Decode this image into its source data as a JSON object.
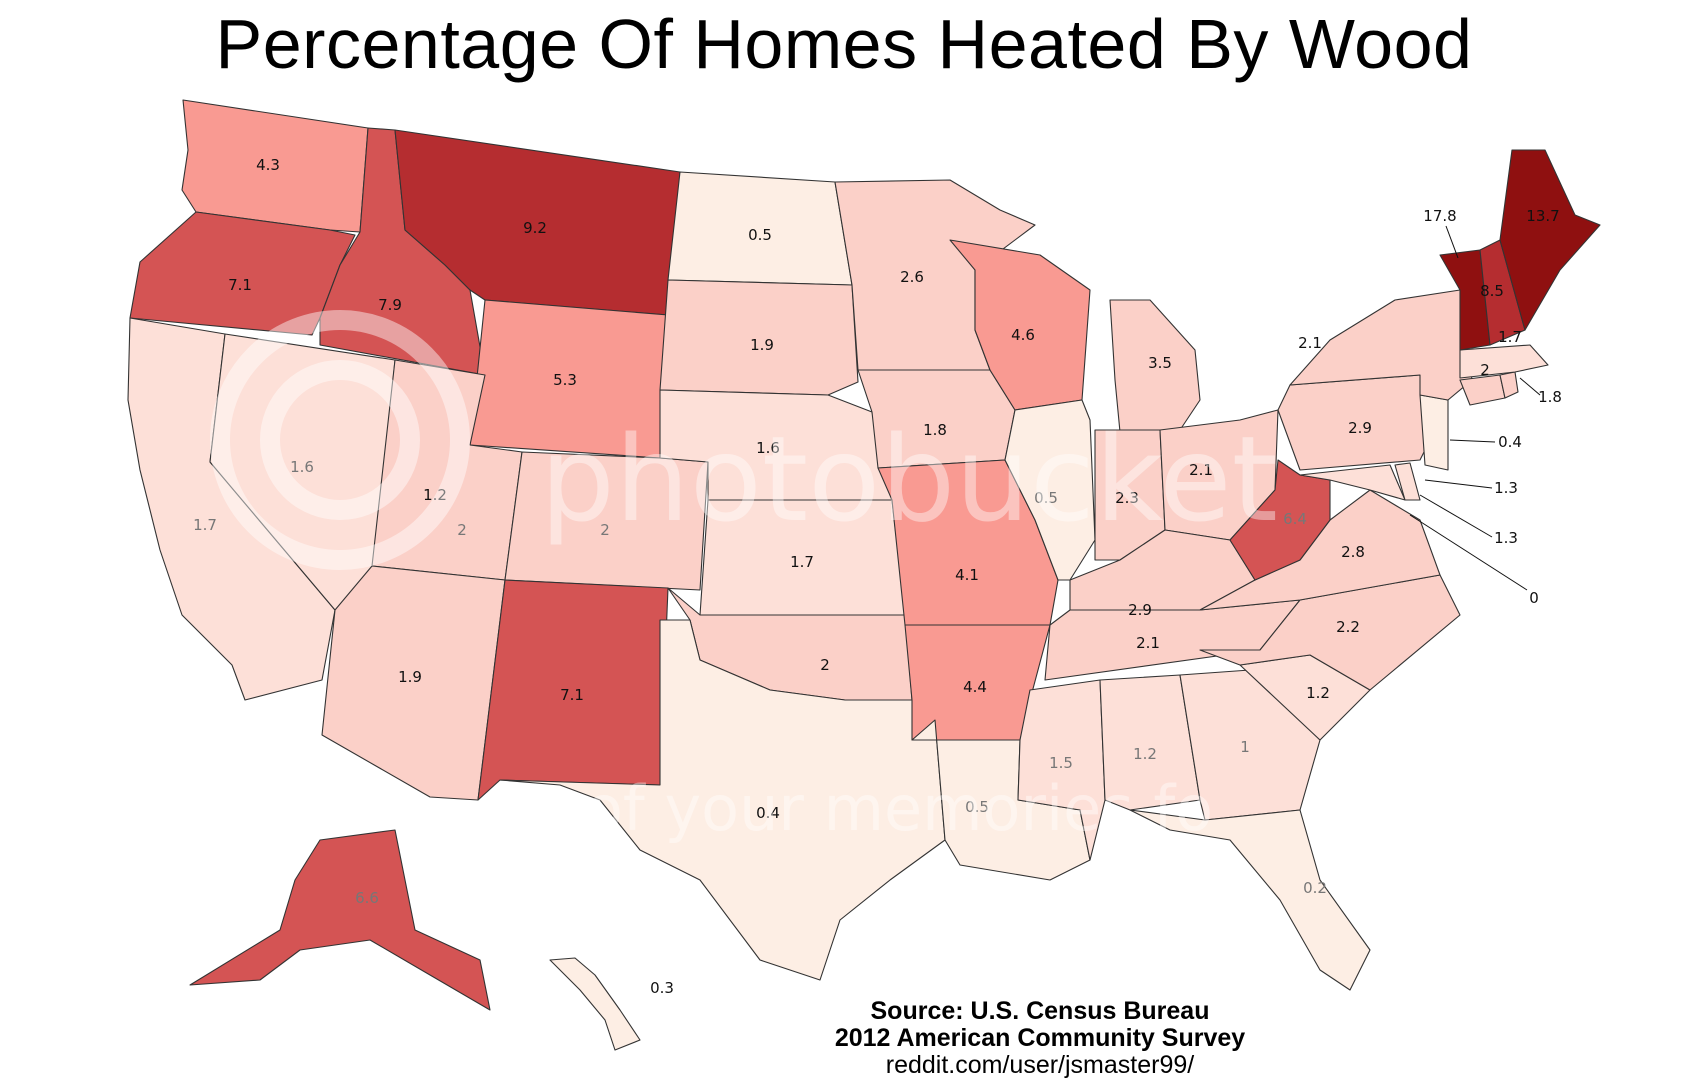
{
  "title": "Percentage Of Homes Heated By Wood",
  "source": {
    "line1": "Source: U.S. Census Bureau",
    "line2": "2012 American Community Survey",
    "line3": "reddit.com/user/jsmaster99/"
  },
  "watermark": {
    "brand": "photobucket",
    "tagline": "of your memories fo"
  },
  "colors": {
    "scale": [
      "#fdeee4",
      "#fde0d8",
      "#fbd0c8",
      "#f99a92",
      "#d45454",
      "#b52d30",
      "#8f1010"
    ]
  },
  "states": [
    {
      "code": "ME",
      "value": "13.7"
    },
    {
      "code": "VT",
      "value": "17.8"
    },
    {
      "code": "MT",
      "value": "9.2"
    },
    {
      "code": "NH",
      "value": "8.5"
    },
    {
      "code": "ID",
      "value": "7.9"
    },
    {
      "code": "OR",
      "value": "7.1"
    },
    {
      "code": "NM",
      "value": "7.1"
    },
    {
      "code": "AK",
      "value": "6.6"
    },
    {
      "code": "WV",
      "value": "6.4"
    },
    {
      "code": "WY",
      "value": "5.3"
    },
    {
      "code": "WI",
      "value": "4.6"
    },
    {
      "code": "AR",
      "value": "4.4"
    },
    {
      "code": "WA",
      "value": "4.3"
    },
    {
      "code": "MO",
      "value": "4.1"
    },
    {
      "code": "MI",
      "value": "3.5"
    },
    {
      "code": "PA",
      "value": "2.9"
    },
    {
      "code": "KY",
      "value": "2.9"
    },
    {
      "code": "VA",
      "value": "2.8"
    },
    {
      "code": "MN",
      "value": "2.6"
    },
    {
      "code": "IN",
      "value": "2.3"
    },
    {
      "code": "NC",
      "value": "2.2"
    },
    {
      "code": "NY",
      "value": "2.1"
    },
    {
      "code": "OH",
      "value": "2.1"
    },
    {
      "code": "TN",
      "value": "2.1"
    },
    {
      "code": "UT",
      "value": "2"
    },
    {
      "code": "CO",
      "value": "2"
    },
    {
      "code": "OK",
      "value": "2"
    },
    {
      "code": "CT",
      "value": "2"
    },
    {
      "code": "SD",
      "value": "1.9"
    },
    {
      "code": "AZ",
      "value": "1.9"
    },
    {
      "code": "IA",
      "value": "1.8"
    },
    {
      "code": "RI",
      "value": "1.8"
    },
    {
      "code": "CA",
      "value": "1.7"
    },
    {
      "code": "KS",
      "value": "1.7"
    },
    {
      "code": "MA",
      "value": "1.7"
    },
    {
      "code": "NE",
      "value": "1.6"
    },
    {
      "code": "NV",
      "value": "1.6"
    },
    {
      "code": "MS",
      "value": "1.5"
    },
    {
      "code": "DE",
      "value": "1.3"
    },
    {
      "code": "MD",
      "value": "1.3"
    },
    {
      "code": "NV2",
      "value": "1.2"
    },
    {
      "code": "AL",
      "value": "1.2"
    },
    {
      "code": "SC",
      "value": "1.2"
    },
    {
      "code": "GA",
      "value": "1"
    },
    {
      "code": "ND",
      "value": "0.5"
    },
    {
      "code": "IL",
      "value": "0.5"
    },
    {
      "code": "LA",
      "value": "0.5"
    },
    {
      "code": "TX",
      "value": "0.4"
    },
    {
      "code": "NJ",
      "value": "0.4"
    },
    {
      "code": "HI",
      "value": "0.3"
    },
    {
      "code": "FL",
      "value": "0.2"
    },
    {
      "code": "DC",
      "value": "0"
    }
  ]
}
